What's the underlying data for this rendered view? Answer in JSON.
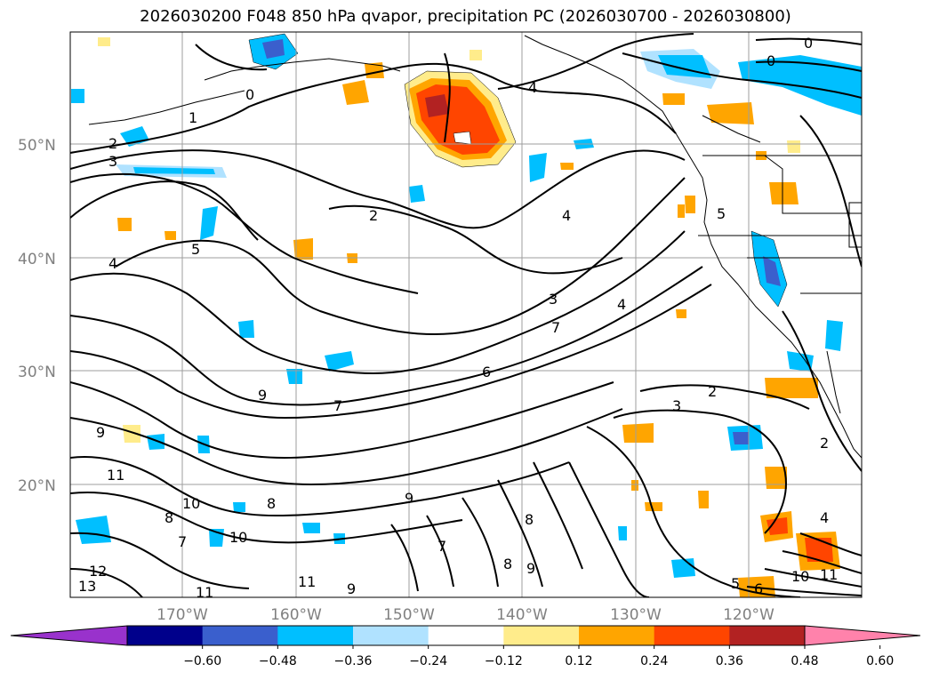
{
  "title": "2026030200 F048 850 hPa qvapor, precipitation PC (2026030700 - 2026030800)",
  "latitude_labels": [
    "50°N",
    "40°N",
    "30°N",
    "20°N"
  ],
  "longitude_labels": [
    "170°W",
    "160°W",
    "150°W",
    "140°W",
    "130°W",
    "120°W"
  ],
  "colorbar": {
    "tick_labels": [
      "−0.60",
      "−0.48",
      "−0.36",
      "−0.24",
      "−0.12",
      "0.12",
      "0.24",
      "0.36",
      "0.48",
      "0.60"
    ],
    "colors": [
      "#9932cc",
      "#00008b",
      "#3a5fcd",
      "#00bfff",
      "#b0e2ff",
      "#ffffff",
      "#ffec8b",
      "#ffa500",
      "#ff4500",
      "#b22222",
      "#ff82ab"
    ]
  },
  "contour_labels": [
    "0",
    "1",
    "2",
    "3",
    "4",
    "5",
    "2",
    "4",
    "4",
    "3",
    "4",
    "7",
    "6",
    "2",
    "3",
    "7",
    "9",
    "9",
    "11",
    "10",
    "8",
    "7",
    "8",
    "10",
    "9",
    "8",
    "7",
    "8",
    "9",
    "9",
    "11",
    "11",
    "13",
    "12",
    "5",
    "6",
    "10",
    "11",
    "4",
    "0",
    "0",
    "2",
    "5"
  ]
}
